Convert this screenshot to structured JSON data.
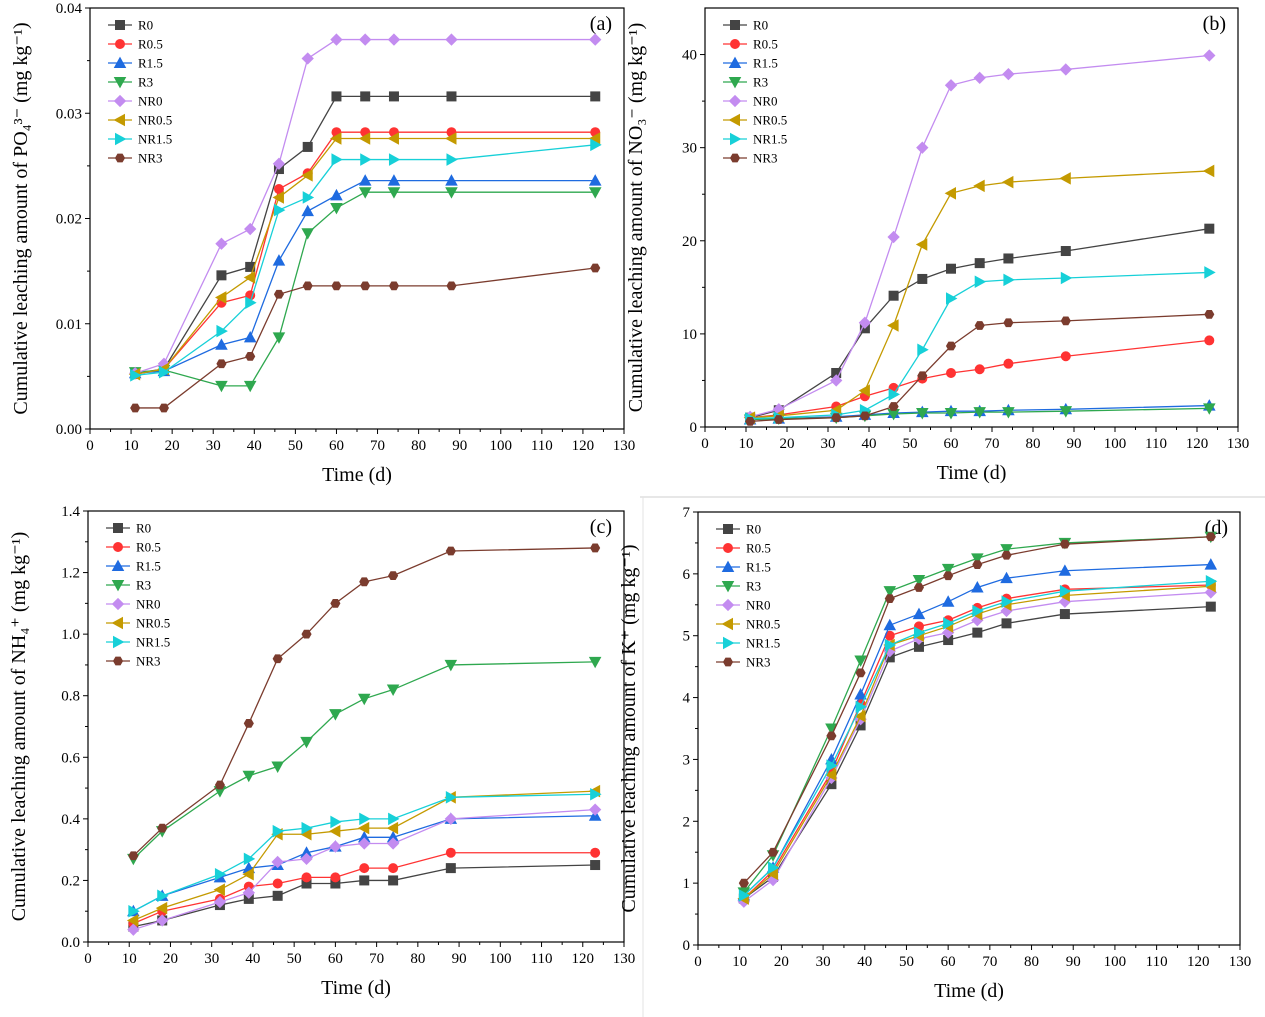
{
  "colors": {
    "R0": "#444444",
    "R0.5": "#ff3333",
    "R1.5": "#1f6be0",
    "R3": "#2fa84f",
    "NR0": "#c38cf0",
    "NR0.5": "#c49a00",
    "NR1.5": "#17d0d8",
    "NR3": "#7b3c2e"
  },
  "markers": {
    "R0": "square",
    "R0.5": "circle",
    "R1.5": "triangle-up",
    "R3": "triangle-down",
    "NR0": "diamond",
    "NR0.5": "triangle-left",
    "NR1.5": "triangle-right",
    "NR3": "hexagon"
  },
  "chart_data": [
    {
      "type": "line",
      "panel_label": "(a)",
      "xlabel": "Time (d)",
      "ylabel": "Cumulative leaching amount of PO₄³⁻ (mg kg⁻¹)",
      "xlim": [
        0,
        130
      ],
      "ylim": [
        0,
        0.04
      ],
      "xticks": [
        "0",
        "10",
        "20",
        "30",
        "40",
        "50",
        "60",
        "70",
        "80",
        "90",
        "100",
        "110",
        "120",
        "130"
      ],
      "yticks": [
        "0.00",
        "0.01",
        "0.02",
        "0.03",
        "0.04"
      ],
      "ytick_values": [
        0,
        0.01,
        0.02,
        0.03,
        0.04
      ],
      "legend_position": "top-left",
      "x": [
        11,
        18,
        32,
        39,
        46,
        53,
        60,
        67,
        74,
        88,
        123
      ],
      "series": [
        {
          "name": "R0",
          "values": [
            0.0053,
            0.0057,
            0.0146,
            0.0154,
            0.0247,
            0.0268,
            0.0316,
            0.0316,
            0.0316,
            0.0316,
            0.0316
          ]
        },
        {
          "name": "R0.5",
          "values": [
            0.0052,
            0.0057,
            0.012,
            0.0127,
            0.0228,
            0.0243,
            0.0282,
            0.0282,
            0.0282,
            0.0282,
            0.0282
          ]
        },
        {
          "name": "R1.5",
          "values": [
            0.0053,
            0.0055,
            0.008,
            0.0087,
            0.016,
            0.0207,
            0.0222,
            0.0236,
            0.0236,
            0.0236,
            0.0236
          ]
        },
        {
          "name": "R3",
          "values": [
            0.0054,
            0.0056,
            0.0041,
            0.0041,
            0.0087,
            0.0186,
            0.021,
            0.0225,
            0.0225,
            0.0225,
            0.0225
          ]
        },
        {
          "name": "NR0",
          "values": [
            0.0053,
            0.0062,
            0.0176,
            0.019,
            0.0252,
            0.0352,
            0.037,
            0.037,
            0.037,
            0.037,
            0.037
          ]
        },
        {
          "name": "NR0.5",
          "values": [
            0.0052,
            0.0057,
            0.0125,
            0.0144,
            0.022,
            0.0241,
            0.0276,
            0.0276,
            0.0276,
            0.0276,
            0.0276
          ]
        },
        {
          "name": "NR1.5",
          "values": [
            0.0051,
            0.0054,
            0.0093,
            0.012,
            0.0208,
            0.022,
            0.0256,
            0.0256,
            0.0256,
            0.0256,
            0.027
          ]
        },
        {
          "name": "NR3",
          "values": [
            0.002,
            0.002,
            0.0062,
            0.0069,
            0.0128,
            0.0136,
            0.0136,
            0.0136,
            0.0136,
            0.0136,
            0.0153
          ]
        }
      ]
    },
    {
      "type": "line",
      "panel_label": "(b)",
      "xlabel": "Time (d)",
      "ylabel": "Cumulative leaching amount of NO₃⁻ (mg kg⁻¹)",
      "xlim": [
        0,
        130
      ],
      "ylim": [
        0,
        45
      ],
      "xticks": [
        "0",
        "10",
        "20",
        "30",
        "40",
        "50",
        "60",
        "70",
        "80",
        "90",
        "100",
        "110",
        "120",
        "130"
      ],
      "yticks": [
        "0",
        "10",
        "20",
        "30",
        "40"
      ],
      "ytick_values": [
        0,
        10,
        20,
        30,
        40
      ],
      "legend_position": "top-left",
      "x": [
        11,
        18,
        32,
        39,
        46,
        53,
        60,
        67,
        74,
        88,
        123
      ],
      "series": [
        {
          "name": "R0",
          "values": [
            1.0,
            1.8,
            5.8,
            10.6,
            14.1,
            15.9,
            17.0,
            17.6,
            18.1,
            18.9,
            21.3
          ]
        },
        {
          "name": "R0.5",
          "values": [
            1.0,
            1.3,
            2.2,
            3.3,
            4.2,
            5.2,
            5.8,
            6.2,
            6.8,
            7.6,
            9.3
          ]
        },
        {
          "name": "R1.5",
          "values": [
            0.8,
            0.9,
            1.1,
            1.3,
            1.5,
            1.6,
            1.7,
            1.7,
            1.8,
            1.9,
            2.3
          ]
        },
        {
          "name": "R3",
          "values": [
            0.8,
            0.9,
            1.0,
            1.2,
            1.4,
            1.5,
            1.5,
            1.6,
            1.6,
            1.7,
            2.0
          ]
        },
        {
          "name": "NR0",
          "values": [
            1.1,
            1.9,
            5.0,
            11.2,
            20.4,
            30.0,
            36.7,
            37.5,
            37.9,
            38.4,
            39.9
          ]
        },
        {
          "name": "NR0.5",
          "values": [
            1.0,
            1.2,
            1.8,
            3.9,
            10.9,
            19.6,
            25.1,
            25.9,
            26.3,
            26.7,
            27.5
          ]
        },
        {
          "name": "NR1.5",
          "values": [
            0.9,
            1.0,
            1.3,
            1.8,
            3.5,
            8.3,
            13.8,
            15.6,
            15.8,
            16.0,
            16.6
          ]
        },
        {
          "name": "NR3",
          "values": [
            0.6,
            0.8,
            1.0,
            1.2,
            2.2,
            5.5,
            8.7,
            10.9,
            11.2,
            11.4,
            12.1
          ]
        }
      ]
    },
    {
      "type": "line",
      "panel_label": "(c)",
      "xlabel": "Time (d)",
      "ylabel": "Cumulative leaching amount of NH₄⁺ (mg kg⁻¹)",
      "xlim": [
        0,
        130
      ],
      "ylim": [
        0,
        1.4
      ],
      "xticks": [
        "0",
        "10",
        "20",
        "30",
        "40",
        "50",
        "60",
        "70",
        "80",
        "90",
        "100",
        "110",
        "120",
        "130"
      ],
      "yticks": [
        "0.0",
        "0.2",
        "0.4",
        "0.6",
        "0.8",
        "1.0",
        "1.2",
        "1.4"
      ],
      "ytick_values": [
        0,
        0.2,
        0.4,
        0.6,
        0.8,
        1.0,
        1.2,
        1.4
      ],
      "legend_position": "top-left",
      "x": [
        11,
        18,
        32,
        39,
        46,
        53,
        60,
        67,
        74,
        88,
        123
      ],
      "series": [
        {
          "name": "R0",
          "values": [
            0.05,
            0.07,
            0.12,
            0.14,
            0.15,
            0.19,
            0.19,
            0.2,
            0.2,
            0.24,
            0.25
          ]
        },
        {
          "name": "R0.5",
          "values": [
            0.06,
            0.1,
            0.14,
            0.18,
            0.19,
            0.21,
            0.21,
            0.24,
            0.24,
            0.29,
            0.29
          ]
        },
        {
          "name": "R1.5",
          "values": [
            0.1,
            0.15,
            0.21,
            0.24,
            0.25,
            0.29,
            0.31,
            0.34,
            0.34,
            0.4,
            0.41
          ]
        },
        {
          "name": "R3",
          "values": [
            0.27,
            0.36,
            0.49,
            0.54,
            0.57,
            0.65,
            0.74,
            0.79,
            0.82,
            0.9,
            0.91
          ]
        },
        {
          "name": "NR0",
          "values": [
            0.04,
            0.07,
            0.13,
            0.16,
            0.26,
            0.27,
            0.31,
            0.32,
            0.32,
            0.4,
            0.43
          ]
        },
        {
          "name": "NR0.5",
          "values": [
            0.07,
            0.11,
            0.17,
            0.22,
            0.35,
            0.35,
            0.36,
            0.37,
            0.37,
            0.47,
            0.49
          ]
        },
        {
          "name": "NR1.5",
          "values": [
            0.1,
            0.15,
            0.22,
            0.27,
            0.36,
            0.37,
            0.39,
            0.4,
            0.4,
            0.47,
            0.48
          ]
        },
        {
          "name": "NR3",
          "values": [
            0.28,
            0.37,
            0.51,
            0.71,
            0.92,
            1.0,
            1.1,
            1.17,
            1.19,
            1.27,
            1.28
          ]
        }
      ]
    },
    {
      "type": "line",
      "panel_label": "(d)",
      "xlabel": "Time (d)",
      "ylabel": "Cumulative leaching amount of  K⁺ (mg kg⁻¹)",
      "xlim": [
        0,
        130
      ],
      "ylim": [
        0,
        7
      ],
      "xticks": [
        "0",
        "10",
        "20",
        "30",
        "40",
        "50",
        "60",
        "70",
        "80",
        "90",
        "100",
        "110",
        "120",
        "130"
      ],
      "yticks": [
        "0",
        "1",
        "2",
        "3",
        "4",
        "5",
        "6",
        "7"
      ],
      "ytick_values": [
        0,
        1,
        2,
        3,
        4,
        5,
        6,
        7
      ],
      "legend_position": "top-left",
      "x": [
        11,
        18,
        32,
        39,
        46,
        53,
        60,
        67,
        74,
        88,
        123
      ],
      "series": [
        {
          "name": "R0",
          "values": [
            0.75,
            1.1,
            2.6,
            3.55,
            4.65,
            4.82,
            4.93,
            5.05,
            5.2,
            5.35,
            5.47
          ]
        },
        {
          "name": "R0.5",
          "values": [
            0.75,
            1.2,
            2.8,
            3.9,
            5.0,
            5.15,
            5.25,
            5.45,
            5.6,
            5.75,
            5.82
          ]
        },
        {
          "name": "R1.5",
          "values": [
            0.8,
            1.25,
            3.0,
            4.05,
            5.17,
            5.35,
            5.55,
            5.78,
            5.93,
            6.05,
            6.15
          ]
        },
        {
          "name": "R3",
          "values": [
            0.85,
            1.45,
            3.5,
            4.6,
            5.72,
            5.9,
            6.08,
            6.25,
            6.4,
            6.5,
            6.6
          ]
        },
        {
          "name": "NR0",
          "values": [
            0.7,
            1.05,
            2.7,
            3.65,
            4.75,
            4.95,
            5.05,
            5.25,
            5.4,
            5.55,
            5.7
          ]
        },
        {
          "name": "NR0.5",
          "values": [
            0.75,
            1.15,
            2.75,
            3.7,
            4.85,
            5.0,
            5.15,
            5.35,
            5.5,
            5.65,
            5.8
          ]
        },
        {
          "name": "NR1.5",
          "values": [
            0.8,
            1.25,
            2.9,
            3.85,
            4.85,
            5.05,
            5.2,
            5.4,
            5.55,
            5.72,
            5.88
          ]
        },
        {
          "name": "NR3",
          "values": [
            1.0,
            1.5,
            3.38,
            4.4,
            5.6,
            5.78,
            5.97,
            6.15,
            6.3,
            6.48,
            6.6
          ]
        }
      ]
    }
  ]
}
